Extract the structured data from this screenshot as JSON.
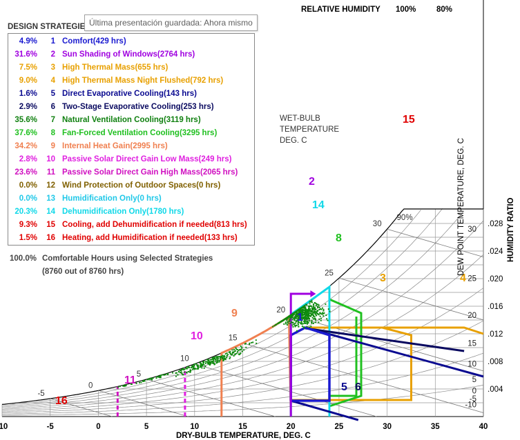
{
  "tooltip": "Última presentación guardada: Ahora mismo",
  "legend_heading": "DESIGN STRATEGIES: CHARAT, ANTOFAGASTA, DECEMBER",
  "strategies": [
    {
      "pct": "4.9%",
      "num": "1",
      "text": "Comfort(429 hrs)",
      "color": "#1a1ad0"
    },
    {
      "pct": "31.6%",
      "num": "2",
      "text": "Sun Shading of Windows(2764 hrs)",
      "color": "#a000e0"
    },
    {
      "pct": "7.5%",
      "num": "3",
      "text": "High Thermal Mass(655 hrs)",
      "color": "#e8a000"
    },
    {
      "pct": "9.0%",
      "num": "4",
      "text": "High Thermal Mass Night Flushed(792 hrs)",
      "color": "#e8a000"
    },
    {
      "pct": "1.6%",
      "num": "5",
      "text": "Direct Evaporative Cooling(143 hrs)",
      "color": "#0a0a90"
    },
    {
      "pct": "2.9%",
      "num": "6",
      "text": "Two-Stage Evaporative Cooling(253 hrs)",
      "color": "#0a0a60"
    },
    {
      "pct": "35.6%",
      "num": "7",
      "text": "Natural Ventilation Cooling(3119 hrs)",
      "color": "#108010"
    },
    {
      "pct": "37.6%",
      "num": "8",
      "text": "Fan-Forced Ventilation Cooling(3295 hrs)",
      "color": "#20c020"
    },
    {
      "pct": "34.2%",
      "num": "9",
      "text": "Internal Heat Gain(2995 hrs)",
      "color": "#f08050"
    },
    {
      "pct": "2.8%",
      "num": "10",
      "text": "Passive Solar Direct Gain Low Mass(249 hrs)",
      "color": "#e020e0"
    },
    {
      "pct": "23.6%",
      "num": "11",
      "text": "Passive Solar Direct Gain High Mass(2065 hrs)",
      "color": "#d010c0"
    },
    {
      "pct": "0.0%",
      "num": "12",
      "text": "Wind Protection of Outdoor Spaces(0 hrs)",
      "color": "#806000"
    },
    {
      "pct": "0.0%",
      "num": "13",
      "text": "Humidification Only(0 hrs)",
      "color": "#20c8e8"
    },
    {
      "pct": "20.3%",
      "num": "14",
      "text": "Dehumidification Only(1780 hrs)",
      "color": "#10d8e8"
    },
    {
      "pct": "9.3%",
      "num": "15",
      "text": "Cooling, add Dehumidification if needed(813 hrs)",
      "color": "#e00000"
    },
    {
      "pct": "1.5%",
      "num": "16",
      "text": "Heating, add Humidification if needed(133 hrs)",
      "color": "#e00000"
    }
  ],
  "comfort_pct": "100.0%",
  "comfort_text": "Comfortable Hours using Selected Strategies",
  "comfort_sub": "(8760 out of 8760 hrs)",
  "chart_data": {
    "type": "scatter",
    "title": "",
    "xlabel": "DRY-BULB TEMPERATURE, DEG. C",
    "ylabel": "HUMIDITY RATIO",
    "y2label": "DEW POINT TEMPERATURE, DEG. C",
    "rh_label": "RELATIVE HUMIDITY",
    "rh_top_labels": [
      "100%",
      "80%"
    ],
    "rh_90_label": "90%",
    "wet_bulb_label": [
      "WET-BULB",
      "TEMPERATURE",
      "DEG. C"
    ],
    "xlim": [
      -10,
      40
    ],
    "ylim": [
      0,
      0.03
    ],
    "x_ticks": [
      "-10",
      "-5",
      "0",
      "5",
      "10",
      "15",
      "20",
      "25",
      "30",
      "35",
      "40"
    ],
    "humidity_ticks": [
      ".004",
      ".008",
      ".012",
      ".016",
      ".020",
      ".024",
      ".028"
    ],
    "dew_point_ticks": [
      "-10",
      "-5",
      "0",
      "5",
      "10",
      "15",
      "20",
      "25",
      "30"
    ],
    "wet_bulb_ticks": [
      "-5",
      "0",
      "5",
      "10",
      "15",
      "20",
      "25",
      "30"
    ],
    "grid": true,
    "zone_labels": [
      {
        "id": "1",
        "color": "#1a1ad0"
      },
      {
        "id": "2",
        "color": "#a000e0"
      },
      {
        "id": "3",
        "color": "#e8a000"
      },
      {
        "id": "4",
        "color": "#e8a000"
      },
      {
        "id": "5",
        "color": "#0a0a90"
      },
      {
        "id": "6",
        "color": "#0a0a60"
      },
      {
        "id": "8",
        "color": "#20c020"
      },
      {
        "id": "9",
        "color": "#f08050"
      },
      {
        "id": "10",
        "color": "#e020e0"
      },
      {
        "id": "11",
        "color": "#d010c0"
      },
      {
        "id": "14",
        "color": "#10d8e8"
      },
      {
        "id": "15",
        "color": "#e00000"
      },
      {
        "id": "16",
        "color": "#e00000"
      }
    ]
  }
}
